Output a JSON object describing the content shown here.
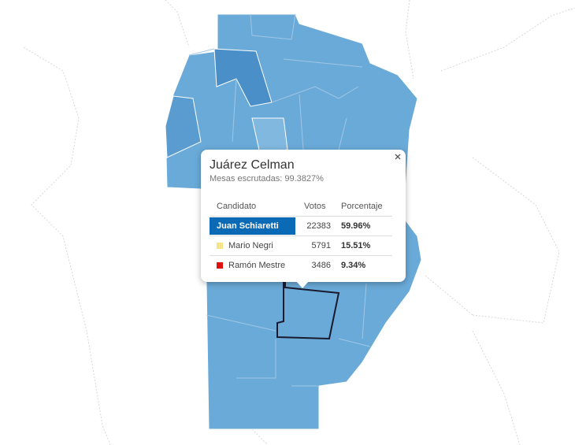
{
  "popup": {
    "title": "Juárez Celman",
    "subtitle": "Mesas escrutadas: 99.3827%",
    "table": {
      "header": [
        "Candidato",
        "Votos",
        "Porcentaje"
      ],
      "rows": [
        [
          "Juan Schiaretti",
          22383,
          "59.96%"
        ],
        [
          "Mario Negri",
          5791,
          "15.51%"
        ],
        [
          "Ramón Mestre",
          3486,
          "9.34%"
        ]
      ]
    }
  }
}
